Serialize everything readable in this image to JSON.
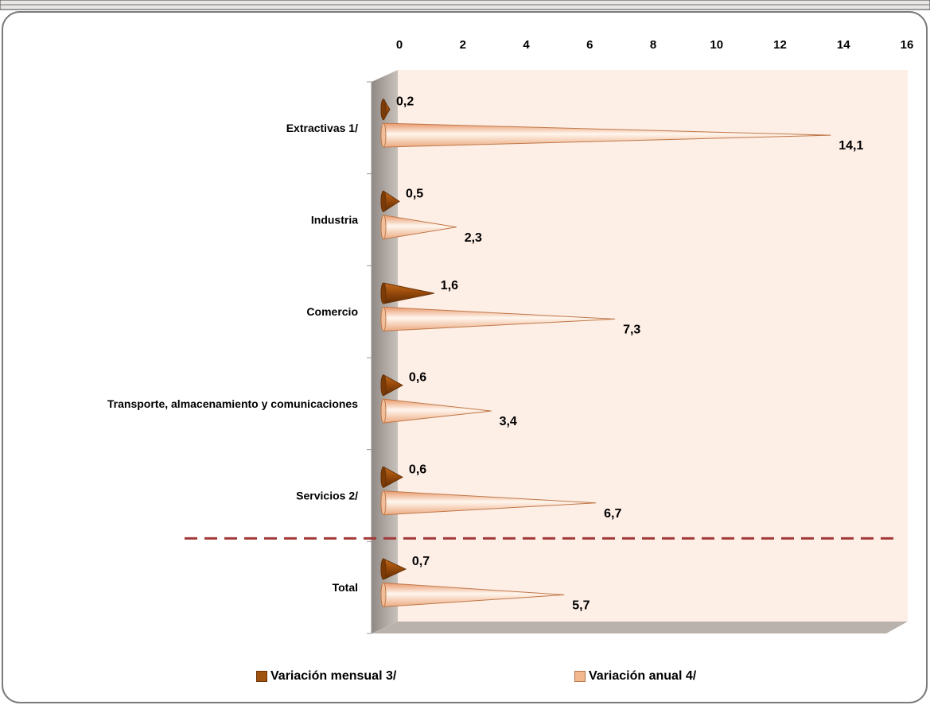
{
  "chart_data": {
    "type": "bar",
    "orientation": "horizontal",
    "style": "3d-cone",
    "categories": [
      "Extractivas 1/",
      "Industria",
      "Comercio",
      "Transporte, almacenamiento y comunicaciones",
      "Servicios 2/",
      "Total"
    ],
    "series": [
      {
        "name": "Variación mensual 3/",
        "values": [
          0.2,
          0.5,
          1.6,
          0.6,
          0.6,
          0.7
        ],
        "labels": [
          "0,2",
          "0,5",
          "1,6",
          "0,6",
          "0,6",
          "0,7"
        ],
        "color": "#a0520f"
      },
      {
        "name": "Variación anual 4/",
        "values": [
          14.1,
          2.3,
          7.3,
          3.4,
          6.7,
          5.7
        ],
        "labels": [
          "14,1",
          "2,3",
          "7,3",
          "3,4",
          "6,7",
          "5,7"
        ],
        "color": "#f4b88e"
      }
    ],
    "xlim": [
      0,
      16
    ],
    "ticks": [
      "0",
      "2",
      "4",
      "6",
      "8",
      "10",
      "12",
      "14",
      "16"
    ],
    "axis_position": "top",
    "grid": false,
    "legend_position": "bottom",
    "separator_before_category": "Total",
    "colors": {
      "background": "#fdeee6",
      "wall": "#b4aca6",
      "separator": "#a33a3a",
      "frame": "#555555"
    }
  },
  "legend": {
    "items": [
      "Variación mensual 3/",
      "Variación anual 4/"
    ]
  }
}
